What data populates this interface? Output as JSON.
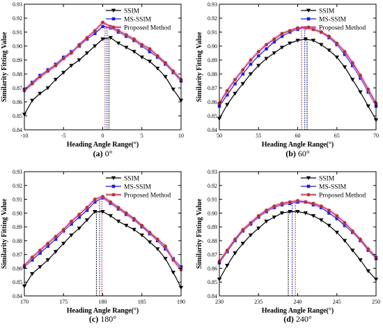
{
  "colors": {
    "ssim": "#000000",
    "ms_ssim": "#1f1fd6",
    "proposed": "#b5322b",
    "proposed_halo": "#f08cf0",
    "axis": "#000000"
  },
  "chart_data": [
    {
      "type": "line",
      "panel": "a",
      "caption_letter": "(a)",
      "caption_text": " 0°",
      "xlabel": "Heading Angle Range(°)",
      "ylabel": "Similarity Fitting Value",
      "xlim": [
        -10,
        10
      ],
      "ylim": [
        0.84,
        0.93
      ],
      "xticks": [
        -10,
        -5,
        0,
        5,
        10
      ],
      "yticks": [
        0.84,
        0.85,
        0.86,
        0.87,
        0.88,
        0.89,
        0.9,
        0.91,
        0.92,
        0.93
      ],
      "legend_position": "top-right",
      "peak_lines": [
        0.8,
        0.55,
        0.3
      ],
      "x": [
        -10,
        -9,
        -8,
        -7,
        -6,
        -5,
        -4,
        -3,
        -2,
        -1,
        0,
        1,
        2,
        3,
        4,
        5,
        6,
        7,
        8,
        9,
        10
      ],
      "series": [
        {
          "name": "SSIM",
          "marker": "triangle-down",
          "values": [
            0.851,
            0.861,
            0.866,
            0.87,
            0.876,
            0.881,
            0.886,
            0.89,
            0.895,
            0.9,
            0.905,
            0.906,
            0.902,
            0.899,
            0.896,
            0.892,
            0.889,
            0.884,
            0.878,
            0.869,
            0.861
          ]
        },
        {
          "name": "MS-SSIM",
          "marker": "square",
          "values": [
            0.869,
            0.874,
            0.879,
            0.883,
            0.887,
            0.892,
            0.896,
            0.9,
            0.905,
            0.909,
            0.914,
            0.913,
            0.91,
            0.907,
            0.904,
            0.9,
            0.896,
            0.892,
            0.887,
            0.881,
            0.875
          ]
        },
        {
          "name": "Proposed Method",
          "marker": "circle",
          "values": [
            0.868,
            0.873,
            0.878,
            0.882,
            0.886,
            0.891,
            0.895,
            0.901,
            0.906,
            0.911,
            0.917,
            0.914,
            0.911,
            0.908,
            0.905,
            0.901,
            0.898,
            0.893,
            0.888,
            0.882,
            0.876
          ]
        }
      ]
    },
    {
      "type": "line",
      "panel": "b",
      "caption_letter": "(b)",
      "caption_text": " 60°",
      "xlabel": "Heading Angle Range(°)",
      "ylabel": "Similarity Fitting Value",
      "xlim": [
        50,
        70
      ],
      "ylim": [
        0.84,
        0.93
      ],
      "xticks": [
        50,
        55,
        60,
        65,
        70
      ],
      "yticks": [
        0.84,
        0.85,
        0.86,
        0.87,
        0.88,
        0.89,
        0.9,
        0.91,
        0.92,
        0.93
      ],
      "legend_position": "top-right",
      "peak_lines": [
        61.2,
        60.9,
        60.5
      ],
      "x": [
        50,
        51,
        52,
        53,
        54,
        55,
        56,
        57,
        58,
        59,
        60,
        61,
        62,
        63,
        64,
        65,
        66,
        67,
        68,
        69,
        70
      ],
      "series": [
        {
          "name": "SSIM",
          "marker": "triangle-down",
          "values": [
            0.848,
            0.858,
            0.866,
            0.873,
            0.88,
            0.886,
            0.891,
            0.895,
            0.899,
            0.902,
            0.904,
            0.905,
            0.904,
            0.901,
            0.897,
            0.892,
            0.885,
            0.876,
            0.867,
            0.857,
            0.847
          ]
        },
        {
          "name": "MS-SSIM",
          "marker": "square",
          "values": [
            0.857,
            0.865,
            0.873,
            0.88,
            0.887,
            0.893,
            0.898,
            0.903,
            0.907,
            0.91,
            0.912,
            0.913,
            0.912,
            0.91,
            0.906,
            0.901,
            0.894,
            0.886,
            0.877,
            0.867,
            0.857
          ]
        },
        {
          "name": "Proposed Method",
          "marker": "circle",
          "values": [
            0.859,
            0.868,
            0.876,
            0.883,
            0.89,
            0.896,
            0.901,
            0.905,
            0.909,
            0.911,
            0.913,
            0.913,
            0.912,
            0.91,
            0.907,
            0.902,
            0.896,
            0.888,
            0.879,
            0.869,
            0.859
          ]
        }
      ]
    },
    {
      "type": "line",
      "panel": "c",
      "caption_letter": "(c)",
      "caption_text": " 180°",
      "xlabel": "Heading Angle Range(°)",
      "ylabel": "Similarity Fitting Value",
      "xlim": [
        170,
        190
      ],
      "ylim": [
        0.84,
        0.93
      ],
      "xticks": [
        170,
        175,
        180,
        185,
        190
      ],
      "yticks": [
        0.84,
        0.85,
        0.86,
        0.87,
        0.88,
        0.89,
        0.9,
        0.91,
        0.92,
        0.93
      ],
      "legend_position": "top-right",
      "peak_lines": [
        179.2,
        179.6,
        179.9
      ],
      "x": [
        170,
        171,
        172,
        173,
        174,
        175,
        176,
        177,
        178,
        179,
        180,
        181,
        182,
        183,
        184,
        185,
        186,
        187,
        188,
        189,
        190
      ],
      "series": [
        {
          "name": "SSIM",
          "marker": "triangle-down",
          "values": [
            0.847,
            0.856,
            0.861,
            0.866,
            0.872,
            0.878,
            0.884,
            0.889,
            0.895,
            0.901,
            0.901,
            0.898,
            0.894,
            0.891,
            0.888,
            0.884,
            0.879,
            0.874,
            0.867,
            0.857,
            0.846
          ]
        },
        {
          "name": "MS-SSIM",
          "marker": "square",
          "values": [
            0.861,
            0.866,
            0.871,
            0.876,
            0.881,
            0.887,
            0.892,
            0.897,
            0.902,
            0.908,
            0.911,
            0.907,
            0.903,
            0.899,
            0.895,
            0.89,
            0.885,
            0.88,
            0.874,
            0.867,
            0.861
          ]
        },
        {
          "name": "Proposed Method",
          "marker": "circle",
          "values": [
            0.862,
            0.868,
            0.873,
            0.878,
            0.883,
            0.888,
            0.894,
            0.899,
            0.904,
            0.91,
            0.912,
            0.908,
            0.904,
            0.9,
            0.896,
            0.891,
            0.886,
            0.881,
            0.876,
            0.866,
            0.859
          ]
        }
      ]
    },
    {
      "type": "line",
      "panel": "d",
      "caption_letter": "(d)",
      "caption_text": " 240°",
      "xlabel": "Heading Angle Range(°)",
      "ylabel": "Similarity Fitting Value",
      "xlim": [
        230,
        250
      ],
      "ylim": [
        0.84,
        0.93
      ],
      "xticks": [
        230,
        235,
        240,
        245,
        250
      ],
      "yticks": [
        0.84,
        0.85,
        0.86,
        0.87,
        0.88,
        0.89,
        0.9,
        0.91,
        0.92,
        0.93
      ],
      "legend_position": "top-right",
      "peak_lines": [
        238.8,
        239.3,
        239.7
      ],
      "x": [
        230,
        231,
        232,
        233,
        234,
        235,
        236,
        237,
        238,
        239,
        240,
        241,
        242,
        243,
        244,
        245,
        246,
        247,
        248,
        249,
        250
      ],
      "series": [
        {
          "name": "SSIM",
          "marker": "triangle-down",
          "values": [
            0.852,
            0.862,
            0.871,
            0.878,
            0.884,
            0.889,
            0.894,
            0.897,
            0.9,
            0.901,
            0.901,
            0.9,
            0.898,
            0.895,
            0.891,
            0.886,
            0.88,
            0.873,
            0.866,
            0.858,
            0.852
          ]
        },
        {
          "name": "MS-SSIM",
          "marker": "square",
          "values": [
            0.864,
            0.872,
            0.88,
            0.887,
            0.892,
            0.897,
            0.901,
            0.904,
            0.906,
            0.907,
            0.908,
            0.908,
            0.906,
            0.904,
            0.9,
            0.896,
            0.891,
            0.886,
            0.88,
            0.873,
            0.867
          ]
        },
        {
          "name": "Proposed Method",
          "marker": "circle",
          "values": [
            0.865,
            0.873,
            0.881,
            0.888,
            0.893,
            0.898,
            0.902,
            0.905,
            0.907,
            0.908,
            0.909,
            0.908,
            0.907,
            0.905,
            0.902,
            0.898,
            0.893,
            0.887,
            0.881,
            0.874,
            0.868
          ]
        }
      ]
    }
  ]
}
